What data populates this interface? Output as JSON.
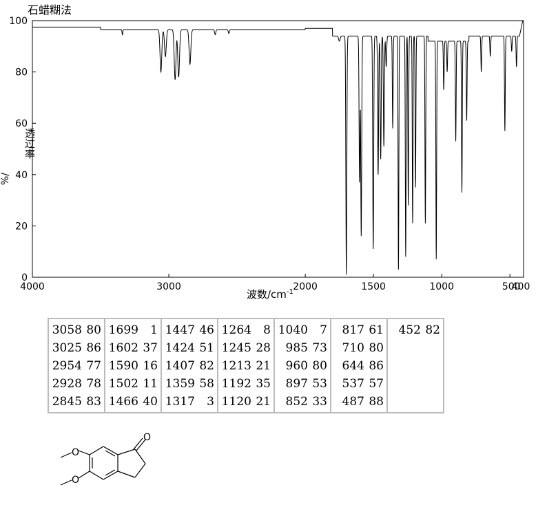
{
  "chart_data": {
    "type": "line",
    "title": "石蜡糊法",
    "xlabel": "波数/cm",
    "xlabel_sup": "-1",
    "ylabel": "透过率",
    "ylabel_unit": "%/",
    "xlim": [
      4000,
      400
    ],
    "ylim": [
      0,
      100
    ],
    "x_ticks": [
      4000,
      3000,
      2000,
      1500,
      1000,
      500
    ],
    "x_tick_labels": [
      "4000",
      "3000",
      "2000",
      "1500",
      "1000",
      "500"
    ],
    "x_end_label": "400",
    "y_ticks": [
      0,
      20,
      40,
      60,
      80,
      100
    ],
    "y_tick_labels": [
      "0",
      "20",
      "40",
      "60",
      "80",
      "100"
    ],
    "peaks": [
      {
        "x": 3058,
        "y": 80
      },
      {
        "x": 3025,
        "y": 86
      },
      {
        "x": 2954,
        "y": 77
      },
      {
        "x": 2928,
        "y": 78
      },
      {
        "x": 2845,
        "y": 83
      },
      {
        "x": 1699,
        "y": 1
      },
      {
        "x": 1602,
        "y": 37
      },
      {
        "x": 1590,
        "y": 16
      },
      {
        "x": 1502,
        "y": 11
      },
      {
        "x": 1466,
        "y": 40
      },
      {
        "x": 1447,
        "y": 46
      },
      {
        "x": 1424,
        "y": 51
      },
      {
        "x": 1407,
        "y": 82
      },
      {
        "x": 1359,
        "y": 58
      },
      {
        "x": 1317,
        "y": 3
      },
      {
        "x": 1264,
        "y": 8
      },
      {
        "x": 1245,
        "y": 28
      },
      {
        "x": 1213,
        "y": 21
      },
      {
        "x": 1192,
        "y": 35
      },
      {
        "x": 1120,
        "y": 21
      },
      {
        "x": 1040,
        "y": 7
      },
      {
        "x": 985,
        "y": 73
      },
      {
        "x": 960,
        "y": 80
      },
      {
        "x": 897,
        "y": 53
      },
      {
        "x": 852,
        "y": 33
      },
      {
        "x": 817,
        "y": 61
      },
      {
        "x": 710,
        "y": 80
      },
      {
        "x": 644,
        "y": 86
      },
      {
        "x": 537,
        "y": 57
      },
      {
        "x": 487,
        "y": 88
      },
      {
        "x": 452,
        "y": 82
      }
    ],
    "grid": false
  },
  "peak_table": [
    [
      [
        "3058",
        "80"
      ],
      [
        "3025",
        "86"
      ],
      [
        "2954",
        "77"
      ],
      [
        "2928",
        "78"
      ],
      [
        "2845",
        "83"
      ]
    ],
    [
      [
        "1699",
        "1"
      ],
      [
        "1602",
        "37"
      ],
      [
        "1590",
        "16"
      ],
      [
        "1502",
        "11"
      ],
      [
        "1466",
        "40"
      ]
    ],
    [
      [
        "1447",
        "46"
      ],
      [
        "1424",
        "51"
      ],
      [
        "1407",
        "82"
      ],
      [
        "1359",
        "58"
      ],
      [
        "1317",
        "3"
      ]
    ],
    [
      [
        "1264",
        "8"
      ],
      [
        "1245",
        "28"
      ],
      [
        "1213",
        "21"
      ],
      [
        "1192",
        "35"
      ],
      [
        "1120",
        "21"
      ]
    ],
    [
      [
        "1040",
        "7"
      ],
      [
        "985",
        "73"
      ],
      [
        "960",
        "80"
      ],
      [
        "897",
        "53"
      ],
      [
        "852",
        "33"
      ]
    ],
    [
      [
        "817",
        "61"
      ],
      [
        "710",
        "80"
      ],
      [
        "644",
        "86"
      ],
      [
        "537",
        "57"
      ],
      [
        "487",
        "88"
      ]
    ],
    [
      [
        "452",
        "82"
      ]
    ]
  ],
  "structure": {
    "atom_label": "O"
  },
  "colors": {
    "line": "#000000",
    "table_border": "#bbbbbb"
  }
}
